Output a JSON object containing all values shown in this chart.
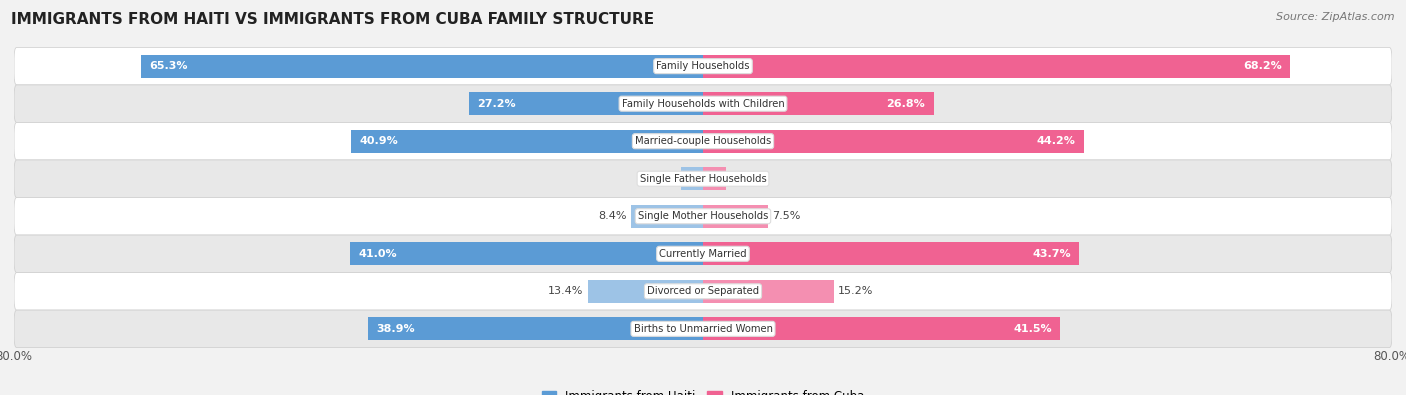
{
  "title": "IMMIGRANTS FROM HAITI VS IMMIGRANTS FROM CUBA FAMILY STRUCTURE",
  "source": "Source: ZipAtlas.com",
  "categories": [
    "Family Households",
    "Family Households with Children",
    "Married-couple Households",
    "Single Father Households",
    "Single Mother Households",
    "Currently Married",
    "Divorced or Separated",
    "Births to Unmarried Women"
  ],
  "haiti_values": [
    65.3,
    27.2,
    40.9,
    2.6,
    8.4,
    41.0,
    13.4,
    38.9
  ],
  "cuba_values": [
    68.2,
    26.8,
    44.2,
    2.7,
    7.5,
    43.7,
    15.2,
    41.5
  ],
  "haiti_color_dark": "#5b9bd5",
  "haiti_color_light": "#9dc3e6",
  "cuba_color_dark": "#f06292",
  "cuba_color_light": "#f48fb1",
  "axis_max": 80.0,
  "background_color": "#f2f2f2",
  "row_bg_odd": "#ffffff",
  "row_bg_even": "#e8e8e8",
  "bar_height": 0.62,
  "haiti_legend": "Immigrants from Haiti",
  "cuba_legend": "Immigrants from Cuba",
  "title_fontsize": 11,
  "label_fontsize": 8,
  "tick_fontsize": 8.5
}
